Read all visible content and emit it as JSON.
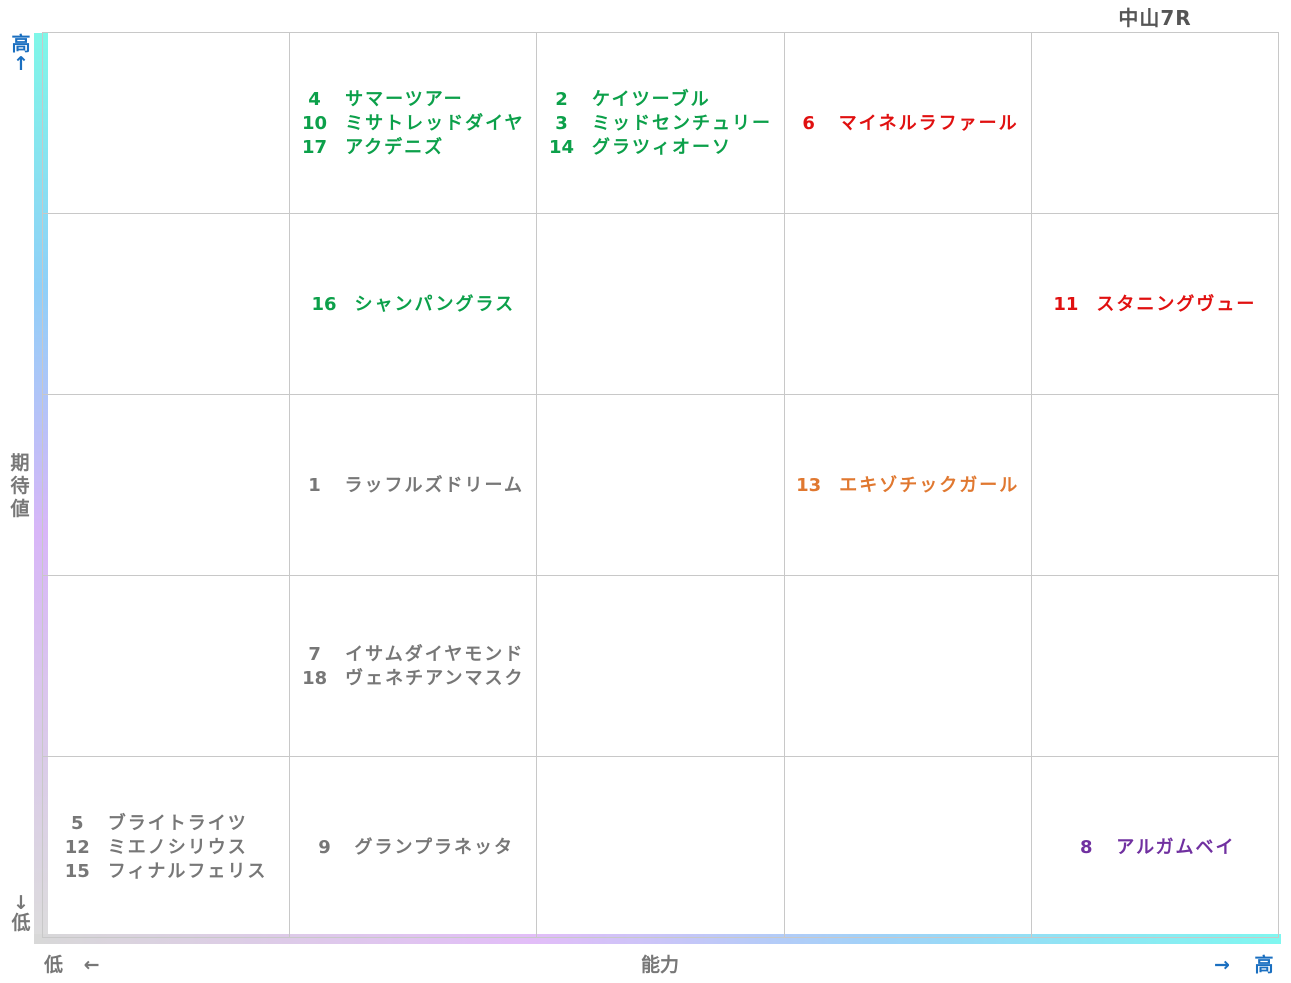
{
  "title": "中山7R",
  "axes": {
    "y_label": "期待値",
    "y_high": "高↑",
    "y_low": "↓低",
    "x_label": "能力",
    "x_low": "低 ←",
    "x_high": "→ 高"
  },
  "colors": {
    "green": "#0ca04a",
    "red": "#e01010",
    "gray": "#777777",
    "orange": "#e07830",
    "purple": "#7030a0",
    "axis_blue": "#1a6fc0"
  },
  "chart_data": {
    "type": "table",
    "title": "中山7R",
    "xlabel": "能力",
    "ylabel": "期待値",
    "x_levels": 5,
    "y_levels": 5,
    "cells": [
      {
        "row": 1,
        "col": 2,
        "color": "green",
        "entries": [
          {
            "num": "4",
            "name": "サマーツアー"
          },
          {
            "num": "10",
            "name": "ミサトレッドダイヤ"
          },
          {
            "num": "17",
            "name": "アクデニズ"
          }
        ]
      },
      {
        "row": 1,
        "col": 3,
        "color": "green",
        "entries": [
          {
            "num": "2",
            "name": "ケイツーブル"
          },
          {
            "num": "3",
            "name": "ミッドセンチュリー"
          },
          {
            "num": "14",
            "name": "グラツィオーソ"
          }
        ]
      },
      {
        "row": 1,
        "col": 4,
        "color": "red",
        "entries": [
          {
            "num": "6",
            "name": "マイネルラファール"
          }
        ]
      },
      {
        "row": 2,
        "col": 2,
        "color": "green",
        "entries": [
          {
            "num": "16",
            "name": "シャンパングラス"
          }
        ]
      },
      {
        "row": 2,
        "col": 5,
        "color": "red",
        "entries": [
          {
            "num": "11",
            "name": "スタニングヴュー"
          }
        ]
      },
      {
        "row": 3,
        "col": 2,
        "color": "gray",
        "entries": [
          {
            "num": "1",
            "name": "ラッフルズドリーム"
          }
        ]
      },
      {
        "row": 3,
        "col": 4,
        "color": "orange",
        "entries": [
          {
            "num": "13",
            "name": "エキゾチックガール"
          }
        ]
      },
      {
        "row": 4,
        "col": 2,
        "color": "gray",
        "entries": [
          {
            "num": "7",
            "name": "イサムダイヤモンド"
          },
          {
            "num": "18",
            "name": "ヴェネチアンマスク"
          }
        ]
      },
      {
        "row": 5,
        "col": 1,
        "color": "gray",
        "entries": [
          {
            "num": "5",
            "name": "ブライトライツ"
          },
          {
            "num": "12",
            "name": "ミエノシリウス"
          },
          {
            "num": "15",
            "name": "フィナルフェリス"
          }
        ]
      },
      {
        "row": 5,
        "col": 2,
        "color": "gray",
        "entries": [
          {
            "num": "9",
            "name": "グランプラネッタ"
          }
        ]
      },
      {
        "row": 5,
        "col": 5,
        "color": "purple",
        "entries": [
          {
            "num": "8",
            "name": "アルガムベイ"
          }
        ]
      }
    ]
  }
}
